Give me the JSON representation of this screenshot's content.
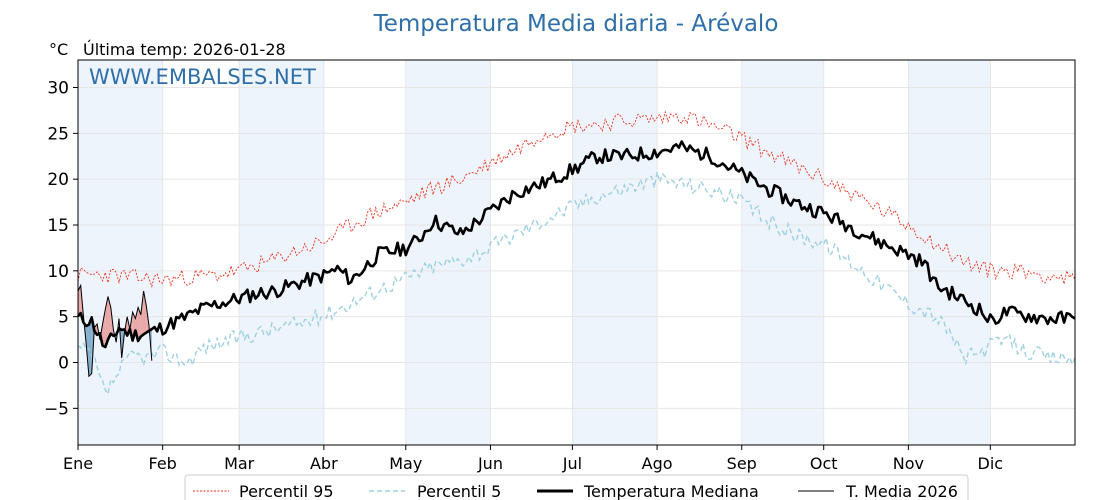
{
  "chart_data": {
    "type": "line",
    "title": "Temperatura Media diaria - Arévalo",
    "unit_label": "°C",
    "subtitle": "Última temp: 2026-01-28",
    "watermark": "WWW.EMBALSES.NET",
    "xlim": [
      0,
      365
    ],
    "ylim": [
      -9,
      33
    ],
    "yticks": [
      -5,
      0,
      5,
      10,
      15,
      20,
      25,
      30
    ],
    "months": [
      {
        "label": "Ene",
        "day": 0
      },
      {
        "label": "Feb",
        "day": 31
      },
      {
        "label": "Mar",
        "day": 59
      },
      {
        "label": "Abr",
        "day": 90
      },
      {
        "label": "May",
        "day": 120
      },
      {
        "label": "Jun",
        "day": 151
      },
      {
        "label": "Jul",
        "day": 181
      },
      {
        "label": "Ago",
        "day": 212
      },
      {
        "label": "Sep",
        "day": 243
      },
      {
        "label": "Oct",
        "day": 273
      },
      {
        "label": "Nov",
        "day": 304
      },
      {
        "label": "Dic",
        "day": 334
      }
    ],
    "grid": true,
    "legend_position": "bottom",
    "colors": {
      "p95": "#e8301c",
      "p5": "#9fd0e0",
      "median": "#000000",
      "current": "#000000",
      "above_fill": "#e8a0a0",
      "below_fill": "#7aa6c8",
      "band": "#eef4fb",
      "title": "#2f6fa7"
    },
    "series": [
      {
        "name": "Percentil 95",
        "key": "p95",
        "points": [
          [
            0,
            9.5
          ],
          [
            10,
            9.6
          ],
          [
            20,
            9.3
          ],
          [
            31,
            9.0
          ],
          [
            40,
            9.3
          ],
          [
            50,
            9.5
          ],
          [
            59,
            10.0
          ],
          [
            70,
            11.0
          ],
          [
            80,
            12.2
          ],
          [
            90,
            13.2
          ],
          [
            100,
            15.0
          ],
          [
            110,
            16.5
          ],
          [
            120,
            17.5
          ],
          [
            130,
            19.0
          ],
          [
            140,
            20.0
          ],
          [
            151,
            21.8
          ],
          [
            160,
            23.2
          ],
          [
            170,
            25.0
          ],
          [
            181,
            25.8
          ],
          [
            190,
            26.0
          ],
          [
            200,
            26.4
          ],
          [
            212,
            26.6
          ],
          [
            222,
            27.0
          ],
          [
            232,
            25.8
          ],
          [
            243,
            24.5
          ],
          [
            252,
            23.0
          ],
          [
            262,
            21.5
          ],
          [
            273,
            20.0
          ],
          [
            283,
            18.5
          ],
          [
            293,
            16.8
          ],
          [
            304,
            15.0
          ],
          [
            314,
            13.0
          ],
          [
            324,
            11.0
          ],
          [
            334,
            10.0
          ],
          [
            345,
            10.0
          ],
          [
            355,
            9.5
          ],
          [
            365,
            9.0
          ]
        ]
      },
      {
        "name": "Percentil 5",
        "key": "p5",
        "points": [
          [
            0,
            1.5
          ],
          [
            5,
            0.8
          ],
          [
            10,
            -3.5
          ],
          [
            15,
            -1.0
          ],
          [
            20,
            0.8
          ],
          [
            25,
            0.5
          ],
          [
            31,
            1.2
          ],
          [
            36,
            0.5
          ],
          [
            40,
            0.0
          ],
          [
            45,
            1.5
          ],
          [
            50,
            2.0
          ],
          [
            59,
            2.8
          ],
          [
            70,
            3.5
          ],
          [
            80,
            4.2
          ],
          [
            90,
            5.2
          ],
          [
            100,
            6.5
          ],
          [
            110,
            8.0
          ],
          [
            120,
            9.2
          ],
          [
            130,
            10.5
          ],
          [
            140,
            11.2
          ],
          [
            151,
            12.5
          ],
          [
            160,
            14.0
          ],
          [
            170,
            15.5
          ],
          [
            181,
            17.0
          ],
          [
            190,
            18.2
          ],
          [
            200,
            19.0
          ],
          [
            212,
            20.0
          ],
          [
            222,
            19.5
          ],
          [
            232,
            18.8
          ],
          [
            243,
            17.5
          ],
          [
            252,
            15.5
          ],
          [
            262,
            14.0
          ],
          [
            273,
            13.0
          ],
          [
            283,
            11.0
          ],
          [
            293,
            8.8
          ],
          [
            304,
            6.5
          ],
          [
            314,
            5.0
          ],
          [
            320,
            3.0
          ],
          [
            324,
            0.5
          ],
          [
            330,
            1.0
          ],
          [
            334,
            1.8
          ],
          [
            340,
            2.5
          ],
          [
            345,
            1.5
          ],
          [
            355,
            0.5
          ],
          [
            365,
            0.5
          ]
        ]
      },
      {
        "name": "Temperatura Mediana",
        "key": "median",
        "points": [
          [
            0,
            4.8
          ],
          [
            5,
            4.5
          ],
          [
            10,
            1.5
          ],
          [
            15,
            3.8
          ],
          [
            20,
            3.0
          ],
          [
            25,
            3.2
          ],
          [
            31,
            3.8
          ],
          [
            36,
            4.5
          ],
          [
            40,
            5.0
          ],
          [
            45,
            5.8
          ],
          [
            50,
            6.3
          ],
          [
            59,
            7.0
          ],
          [
            65,
            7.5
          ],
          [
            72,
            7.8
          ],
          [
            80,
            8.6
          ],
          [
            90,
            9.5
          ],
          [
            95,
            10.2
          ],
          [
            100,
            9.0
          ],
          [
            110,
            11.8
          ],
          [
            120,
            12.5
          ],
          [
            125,
            13.5
          ],
          [
            130,
            15.5
          ],
          [
            140,
            14.0
          ],
          [
            151,
            16.5
          ],
          [
            160,
            18.5
          ],
          [
            170,
            19.5
          ],
          [
            181,
            21.0
          ],
          [
            190,
            22.5
          ],
          [
            200,
            22.5
          ],
          [
            212,
            23.0
          ],
          [
            220,
            23.5
          ],
          [
            232,
            22.5
          ],
          [
            243,
            20.5
          ],
          [
            252,
            19.0
          ],
          [
            262,
            17.5
          ],
          [
            273,
            16.3
          ],
          [
            283,
            14.8
          ],
          [
            293,
            13.2
          ],
          [
            304,
            11.8
          ],
          [
            310,
            10.8
          ],
          [
            314,
            8.5
          ],
          [
            320,
            7.5
          ],
          [
            324,
            6.8
          ],
          [
            330,
            5.8
          ],
          [
            334,
            4.5
          ],
          [
            340,
            5.5
          ],
          [
            345,
            5.2
          ],
          [
            355,
            4.8
          ],
          [
            365,
            4.8
          ]
        ]
      },
      {
        "name": "T. Media 2026",
        "key": "current",
        "points": [
          [
            0,
            7.8
          ],
          [
            1,
            8.4
          ],
          [
            2,
            5.0
          ],
          [
            3,
            2.0
          ],
          [
            4,
            -1.5
          ],
          [
            5,
            -1.2
          ],
          [
            6,
            3.8
          ],
          [
            7,
            4.2
          ],
          [
            8,
            2.5
          ],
          [
            9,
            4.2
          ],
          [
            10,
            5.8
          ],
          [
            11,
            7.2
          ],
          [
            12,
            6.0
          ],
          [
            13,
            3.5
          ],
          [
            14,
            2.2
          ],
          [
            15,
            4.8
          ],
          [
            16,
            0.5
          ],
          [
            17,
            3.2
          ],
          [
            18,
            5.0
          ],
          [
            19,
            3.6
          ],
          [
            20,
            5.5
          ],
          [
            21,
            4.8
          ],
          [
            22,
            6.0
          ],
          [
            23,
            5.2
          ],
          [
            24,
            7.8
          ],
          [
            25,
            6.2
          ],
          [
            26,
            4.0
          ],
          [
            27,
            0.2
          ]
        ]
      }
    ]
  }
}
